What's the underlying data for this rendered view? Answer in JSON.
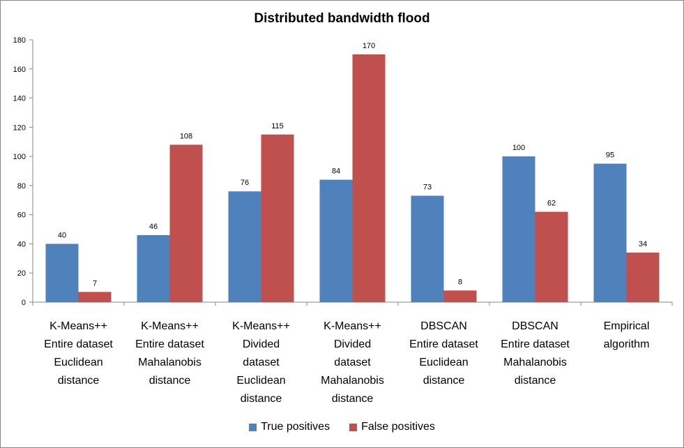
{
  "chart_data": {
    "type": "bar",
    "title": "Distributed bandwidth flood",
    "categories": [
      [
        "K-Means++",
        "Entire dataset",
        "Euclidean",
        "distance"
      ],
      [
        "K-Means++",
        "Entire dataset",
        "Mahalanobis",
        "distance"
      ],
      [
        "K-Means++",
        "Divided",
        "dataset",
        "Euclidean",
        "distance"
      ],
      [
        "K-Means++",
        "Divided",
        "dataset",
        "Mahalanobis",
        "distance"
      ],
      [
        "DBSCAN",
        "Entire dataset",
        "Euclidean",
        "distance"
      ],
      [
        "DBSCAN",
        "Entire dataset",
        "Mahalanobis",
        "distance"
      ],
      [
        "Empirical",
        "algorithm"
      ]
    ],
    "series": [
      {
        "name": "True positives",
        "color": "#4f81bd",
        "values": [
          40,
          46,
          76,
          84,
          73,
          100,
          95
        ]
      },
      {
        "name": "False positives",
        "color": "#c0504d",
        "values": [
          7,
          108,
          115,
          170,
          8,
          62,
          34
        ]
      }
    ],
    "ylim": [
      0,
      180
    ],
    "yticks": [
      0,
      20,
      40,
      60,
      80,
      100,
      120,
      140,
      160,
      180
    ],
    "grid": false,
    "legend_position": "bottom"
  }
}
